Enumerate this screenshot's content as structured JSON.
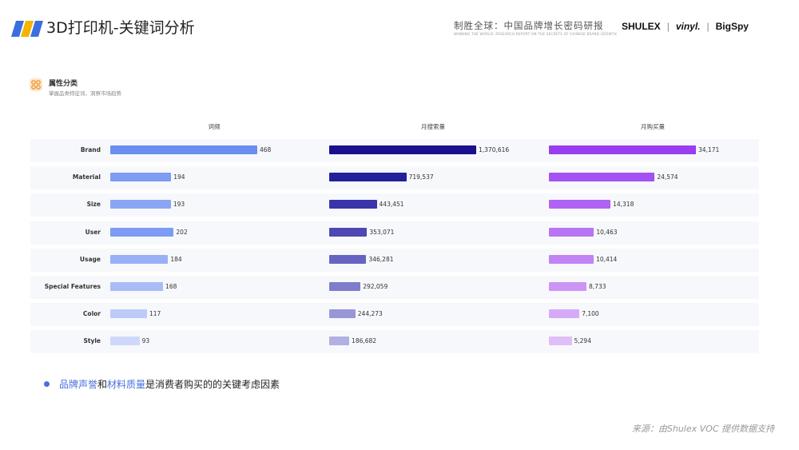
{
  "header": {
    "title": "3D打印机-关键词分析",
    "brand_cn": "制胜全球：中国品牌增长密码研报",
    "brand_en": "WINNING THE WORLD: RESEARCH REPORT ON THE SECRETS OF CHINESE BRAND GROWTH",
    "logo_shulex": "SHULEX",
    "logo_vinyl": "vinyl.",
    "logo_bigspy": "BigSpy",
    "separator": "|"
  },
  "section": {
    "title": "属性分类",
    "subtitle": "掌握品类特征词，洞察市场趋势"
  },
  "chart_data": {
    "type": "bar",
    "orientation": "horizontal",
    "categories": [
      "Brand",
      "Material",
      "Size",
      "User",
      "Usage",
      "Special Features",
      "Color",
      "Style"
    ],
    "series": [
      {
        "name": "词频",
        "values": [
          468,
          194,
          193,
          202,
          184,
          168,
          117,
          93
        ],
        "labels": [
          "468",
          "194",
          "193",
          "202",
          "184",
          "168",
          "117",
          "93"
        ],
        "colors": [
          "#6a8ff0",
          "#7d9cf2",
          "#89a5f3",
          "#7c9bf2",
          "#98b0f5",
          "#a8bdf6",
          "#bccbf8",
          "#ced9fa"
        ]
      },
      {
        "name": "月搜索量",
        "values": [
          1370616,
          719537,
          443451,
          353071,
          346281,
          292059,
          244273,
          186682
        ],
        "labels": [
          "1,370,616",
          "719,537",
          "443,451",
          "353,071",
          "346,281",
          "292,059",
          "244,273",
          "186,682"
        ],
        "colors": [
          "#1a0f8f",
          "#232099",
          "#3a35a8",
          "#4d48b2",
          "#6664c2",
          "#7f7ccb",
          "#9896d6",
          "#b2b0e0"
        ]
      },
      {
        "name": "月购买量",
        "values": [
          34171,
          24574,
          14318,
          10463,
          10414,
          8733,
          7100,
          5294
        ],
        "labels": [
          "34,171",
          "24,574",
          "14,318",
          "10,463",
          "10,414",
          "8,733",
          "7,100",
          "5,294"
        ],
        "colors": [
          "#9a3df0",
          "#a550f2",
          "#b062f3",
          "#b974f4",
          "#c283f5",
          "#cb95f6",
          "#d6aaf7",
          "#e0bff8"
        ]
      }
    ],
    "grid": false,
    "legend": "none"
  },
  "note": {
    "part1": "品牌声誉",
    "part2": "和",
    "part3": "材料质量",
    "part4": "是消费者购买的的关键考虑因素"
  },
  "source": "来源：由Shulex VOC 提供数据支持",
  "colors": {
    "accent": "#4a6fd9"
  }
}
